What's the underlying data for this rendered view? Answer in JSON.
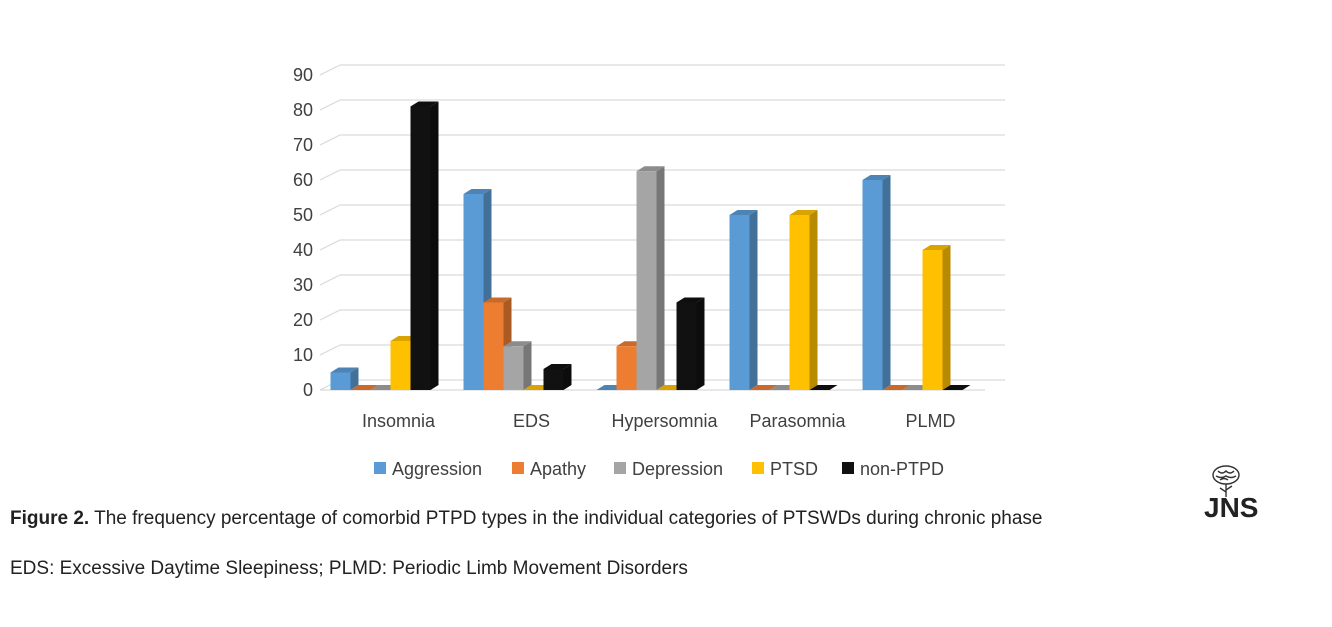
{
  "chart_data": {
    "type": "bar",
    "categories": [
      "Insomnia",
      "EDS",
      "Hypersomnia",
      "Parasomnia",
      "PLMD"
    ],
    "series": [
      {
        "name": "Aggression",
        "color": "#5B9BD5",
        "values": [
          5,
          56,
          0,
          50,
          60
        ]
      },
      {
        "name": "Apathy",
        "color": "#ED7D31",
        "values": [
          0,
          25,
          12.5,
          0,
          0
        ]
      },
      {
        "name": "Depression",
        "color": "#A5A5A5",
        "values": [
          0,
          12.5,
          62.5,
          0,
          0
        ]
      },
      {
        "name": "PTSD",
        "color": "#FFC000",
        "values": [
          14,
          0,
          0,
          50,
          40
        ]
      },
      {
        "name": "non-PTPD",
        "color": "#111111",
        "values": [
          81,
          6,
          25,
          0,
          0
        ]
      }
    ],
    "yticks": [
      0,
      10,
      20,
      30,
      40,
      50,
      60,
      70,
      80,
      90
    ],
    "ylim": [
      0,
      90
    ],
    "grid": true,
    "legend_position": "bottom",
    "title": "",
    "xlabel": "",
    "ylabel": ""
  },
  "caption": {
    "label": "Figure 2.",
    "text": " The frequency percentage of comorbid PTPD types in the individual categories of PTSWDs during chronic phase"
  },
  "abbreviations": "EDS: Excessive Daytime Sleepiness; PLMD: Periodic Limb Movement Disorders",
  "logo": {
    "text": "JNS"
  }
}
